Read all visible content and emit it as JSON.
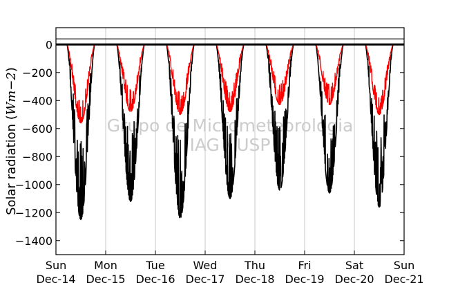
{
  "chart_data": {
    "type": "line",
    "ylabel_text": "Solar radiation (",
    "ylabel_math": "Wm−2",
    "ylabel_close": ")",
    "ylim": [
      -1500,
      120
    ],
    "yticks": [
      0,
      -200,
      -400,
      -600,
      -800,
      -1000,
      -1200,
      -1400
    ],
    "ytick_labels": [
      "0",
      "−200",
      "−400",
      "−600",
      "−800",
      "−1000",
      "−1200",
      "−1400"
    ],
    "xlim": [
      0,
      7
    ],
    "xticks": [
      0,
      1,
      2,
      3,
      4,
      5,
      6,
      7
    ],
    "xtick_labels": [
      [
        "Sun",
        "Dec-14"
      ],
      [
        "Mon",
        "Dec-15"
      ],
      [
        "Tue",
        "Dec-16"
      ],
      [
        "Wed",
        "Dec-17"
      ],
      [
        "Thu",
        "Dec-18"
      ],
      [
        "Fri",
        "Dec-19"
      ],
      [
        "Sat",
        "Dec-20"
      ],
      [
        "Sun",
        "Dec-21"
      ]
    ],
    "grid": "vertical",
    "hlines": [
      0,
      40
    ],
    "watermark": [
      "Grupo de Micrometeorologia",
      "IAG / USP"
    ],
    "series": [
      {
        "color": "#000000",
        "days": [
          {
            "start": 0.22,
            "end": 0.78,
            "peak": -1250
          },
          {
            "start": 0.22,
            "end": 0.78,
            "peak": -1120
          },
          {
            "start": 0.22,
            "end": 0.78,
            "peak": -1240
          },
          {
            "start": 0.22,
            "end": 0.78,
            "peak": -1100
          },
          {
            "start": 0.22,
            "end": 0.78,
            "peak": -1040
          },
          {
            "start": 0.22,
            "end": 0.78,
            "peak": -1060
          },
          {
            "start": 0.22,
            "end": 0.78,
            "peak": -1160
          }
        ]
      },
      {
        "color": "#ff0000",
        "days": [
          {
            "start": 0.22,
            "end": 0.78,
            "peak": -560
          },
          {
            "start": 0.22,
            "end": 0.78,
            "peak": -480
          },
          {
            "start": 0.22,
            "end": 0.78,
            "peak": -500
          },
          {
            "start": 0.22,
            "end": 0.78,
            "peak": -480
          },
          {
            "start": 0.22,
            "end": 0.78,
            "peak": -430
          },
          {
            "start": 0.22,
            "end": 0.78,
            "peak": -430
          },
          {
            "start": 0.22,
            "end": 0.78,
            "peak": -500
          }
        ]
      }
    ]
  }
}
